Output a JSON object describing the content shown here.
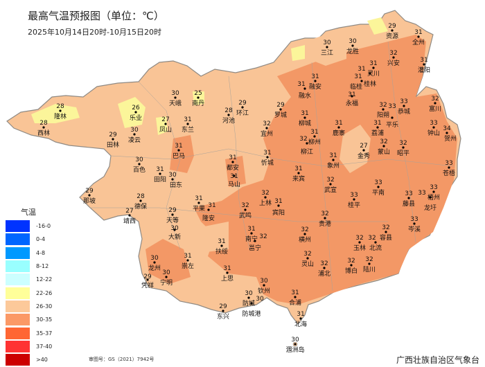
{
  "header": {
    "title": "最高气温预报图（单位：℃）",
    "subtitle": "2025年10月14日20时-10月15日20时"
  },
  "legend": {
    "title": "气温",
    "items": [
      {
        "label": "-16-0",
        "color": "#0033ff"
      },
      {
        "label": "0-4",
        "color": "#0066ff"
      },
      {
        "label": "4-8",
        "color": "#0099ff"
      },
      {
        "label": "8-12",
        "color": "#99ffff"
      },
      {
        "label": "12-22",
        "color": "#ccffff"
      },
      {
        "label": "22-26",
        "color": "#ffff99"
      },
      {
        "label": "26-30",
        "color": "#fcc99a"
      },
      {
        "label": "30-35",
        "color": "#fb9966"
      },
      {
        "label": "35-37",
        "color": "#ff6633"
      },
      {
        "label": "37-40",
        "color": "#ff3333"
      },
      {
        "label": ">40",
        "color": "#cc0000"
      }
    ]
  },
  "map": {
    "colors": {
      "base": "#f9c496",
      "warm": "#f39866",
      "cool": "#fbf59a",
      "border": "#a9a39a"
    },
    "cities": [
      {
        "name": "资源",
        "value": 29
      },
      {
        "name": "全州",
        "value": 31
      },
      {
        "name": "三江",
        "value": 30
      },
      {
        "name": "龙胜",
        "value": 30
      },
      {
        "name": "兴安",
        "value": 32
      },
      {
        "name": "灌阳",
        "value": 31
      },
      {
        "name": "灵川",
        "value": 31
      },
      {
        "name": "桂林",
        "value": 31
      },
      {
        "name": "临桂",
        "value": 31
      },
      {
        "name": "融安",
        "value": 31
      },
      {
        "name": "融水",
        "value": 31
      },
      {
        "name": "永福",
        "value": 31
      },
      {
        "name": "阳朔",
        "value": 32
      },
      {
        "name": "恭城",
        "value": 33
      },
      {
        "name": "平乐",
        "value": 33
      },
      {
        "name": "富川",
        "value": 32
      },
      {
        "name": "钟山",
        "value": 33
      },
      {
        "name": "贺州",
        "value": 34
      },
      {
        "name": "荔浦",
        "value": 31
      },
      {
        "name": "蒙山",
        "value": 32
      },
      {
        "name": "昭平",
        "value": 32
      },
      {
        "name": "金秀",
        "value": 27
      },
      {
        "name": "鹿寨",
        "value": 31
      },
      {
        "name": "柳州",
        "value": 31
      },
      {
        "name": "柳江",
        "value": 32
      },
      {
        "name": "柳城",
        "value": 31
      },
      {
        "name": "象州",
        "value": 31
      },
      {
        "name": "武宣",
        "value": 32
      },
      {
        "name": "平南",
        "value": 33
      },
      {
        "name": "桂平",
        "value": 33
      },
      {
        "name": "藤县",
        "value": 33
      },
      {
        "name": "苍梧",
        "value": 33
      },
      {
        "name": "梧州",
        "value": 33
      },
      {
        "name": "龙圩",
        "value": 33
      },
      {
        "name": "岑溪",
        "value": 33
      },
      {
        "name": "贵港",
        "value": 32
      },
      {
        "name": "容县",
        "value": 32
      },
      {
        "name": "玉林",
        "value": 32
      },
      {
        "name": "北流",
        "value": 32
      },
      {
        "name": "博白",
        "value": 32
      },
      {
        "name": "陆川",
        "value": 32
      },
      {
        "name": "上林",
        "value": 32
      },
      {
        "name": "宾阳",
        "value": 31
      },
      {
        "name": "武鸣",
        "value": 32
      },
      {
        "name": "南宁",
        "value": 31
      },
      {
        "name": "邕宁",
        "value": 32
      },
      {
        "name": "扶绥",
        "value": 31
      },
      {
        "name": "横州",
        "value": 32
      },
      {
        "name": "灵山",
        "value": 32
      },
      {
        "name": "浦北",
        "value": 32
      },
      {
        "name": "上思",
        "value": 31
      },
      {
        "name": "平果",
        "value": 31
      },
      {
        "name": "隆安",
        "value": 31
      },
      {
        "name": "钦州",
        "value": 30
      },
      {
        "name": "防城",
        "value": 30
      },
      {
        "name": "防城港",
        "value": 30
      },
      {
        "name": "东兴",
        "value": 29
      },
      {
        "name": "合浦",
        "value": 31
      },
      {
        "name": "北海",
        "value": 31
      },
      {
        "name": "涠洲岛",
        "value": 30
      },
      {
        "name": "那坡",
        "value": 29
      },
      {
        "name": "德保",
        "value": 28
      },
      {
        "name": "靖西",
        "value": 27
      },
      {
        "name": "天等",
        "value": 29
      },
      {
        "name": "大新",
        "value": 30
      },
      {
        "name": "龙州",
        "value": 30
      },
      {
        "name": "崇左",
        "value": 31
      },
      {
        "name": "凭祥",
        "value": 29
      },
      {
        "name": "宁明",
        "value": 30
      },
      {
        "name": "隆林",
        "value": 28
      },
      {
        "name": "西林",
        "value": 28
      },
      {
        "name": "乐业",
        "value": 26
      },
      {
        "name": "凌云",
        "value": 30
      },
      {
        "name": "田林",
        "value": 29
      },
      {
        "name": "百色",
        "value": 30
      },
      {
        "name": "田阳",
        "value": 31
      },
      {
        "name": "田东",
        "value": 30
      },
      {
        "name": "天峨",
        "value": 30
      },
      {
        "name": "南丹",
        "value": 25
      },
      {
        "name": "凤山",
        "value": 27
      },
      {
        "name": "东兰",
        "value": 31
      },
      {
        "name": "河池",
        "value": 28
      },
      {
        "name": "环江",
        "value": 29
      },
      {
        "name": "罗城",
        "value": 29
      },
      {
        "name": "宜州",
        "value": 32
      },
      {
        "name": "巴马",
        "value": 31
      },
      {
        "name": "都安",
        "value": 31
      },
      {
        "name": "马山",
        "value": 31
      },
      {
        "name": "忻城",
        "value": 31
      },
      {
        "name": "来宾",
        "value": 31
      }
    ]
  },
  "footer": {
    "review_number": "审图号：GS（2021）7942号",
    "agency": "广西壮族自治区气象台"
  }
}
